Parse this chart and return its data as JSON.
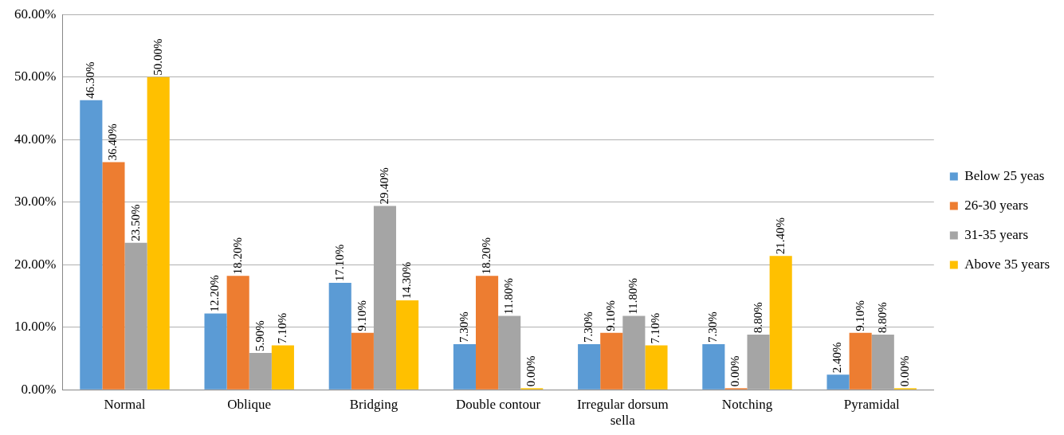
{
  "chart_data": {
    "type": "bar",
    "categories": [
      "Normal",
      "Oblique",
      "Bridging",
      "Double contour",
      "Irregular dorsum sella",
      "Notching",
      "Pyramidal"
    ],
    "series": [
      {
        "name": "Below 25 yeas",
        "color": "#5b9bd5",
        "values": [
          46.3,
          12.2,
          17.1,
          7.3,
          7.3,
          7.3,
          2.4
        ],
        "value_labels": [
          "46.30%",
          "12.20%",
          "17.10%",
          "7.30%",
          "7.30%",
          "7.30%",
          "2.40%"
        ]
      },
      {
        "name": "26-30 years",
        "color": "#ed7d31",
        "values": [
          36.4,
          18.2,
          9.1,
          18.2,
          9.1,
          0,
          9.1
        ],
        "value_labels": [
          "36.40%",
          "18.20%",
          "9.10%",
          "18.20%",
          "9.10%",
          "0.00%",
          "9.10%"
        ]
      },
      {
        "name": "31-35 years",
        "color": "#a5a5a5",
        "values": [
          23.5,
          5.9,
          29.4,
          11.8,
          11.8,
          8.8,
          8.8
        ],
        "value_labels": [
          "23.50%",
          "5.90%",
          "29.40%",
          "11.80%",
          "11.80%",
          "8.80%",
          "8.80%"
        ]
      },
      {
        "name": "Above 35 years",
        "color": "#ffc000",
        "values": [
          50,
          7.1,
          14.3,
          0,
          7.1,
          21.4,
          0
        ],
        "value_labels": [
          "50.00%",
          "7.10%",
          "14.30%",
          "0.00%",
          "7.10%",
          "21.40%",
          "0.00%"
        ]
      }
    ],
    "ylim": [
      0,
      60
    ],
    "yticks": [
      {
        "value": 0,
        "label": "0.00%"
      },
      {
        "value": 10,
        "label": "10.00%"
      },
      {
        "value": 20,
        "label": "20.00%"
      },
      {
        "value": 30,
        "label": "30.00%"
      },
      {
        "value": 40,
        "label": "40.00%"
      },
      {
        "value": 50,
        "label": "50.00%"
      },
      {
        "value": 60,
        "label": "60.00%"
      }
    ],
    "grid": "y",
    "legend": "right"
  }
}
